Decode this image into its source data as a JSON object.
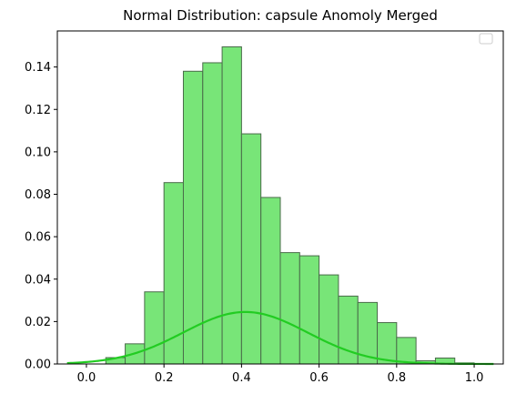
{
  "chart_data": {
    "type": "bar",
    "title": "Normal Distribution: capsule Anomoly Merged",
    "xlabel": "",
    "ylabel": "",
    "xlim": [
      -0.075,
      1.075
    ],
    "ylim": [
      0,
      0.157
    ],
    "x_ticks": [
      0.0,
      0.2,
      0.4,
      0.6,
      0.8,
      1.0
    ],
    "x_tick_labels": [
      "0.0",
      "0.2",
      "0.4",
      "0.6",
      "0.8",
      "1.0"
    ],
    "y_ticks": [
      0.0,
      0.02,
      0.04,
      0.06,
      0.08,
      0.1,
      0.12,
      0.14
    ],
    "y_tick_labels": [
      "0.00",
      "0.02",
      "0.04",
      "0.06",
      "0.08",
      "0.10",
      "0.12",
      "0.14"
    ],
    "grid": false,
    "legend": "top-right",
    "legend_entries": [],
    "histogram": {
      "bin_width": 0.05,
      "bins": [
        {
          "x0": 0.05,
          "value": 0.003
        },
        {
          "x0": 0.1,
          "value": 0.0095
        },
        {
          "x0": 0.15,
          "value": 0.034
        },
        {
          "x0": 0.2,
          "value": 0.0855
        },
        {
          "x0": 0.25,
          "value": 0.138
        },
        {
          "x0": 0.3,
          "value": 0.142
        },
        {
          "x0": 0.35,
          "value": 0.1495
        },
        {
          "x0": 0.4,
          "value": 0.1085
        },
        {
          "x0": 0.45,
          "value": 0.0785
        },
        {
          "x0": 0.5,
          "value": 0.0525
        },
        {
          "x0": 0.55,
          "value": 0.051
        },
        {
          "x0": 0.6,
          "value": 0.042
        },
        {
          "x0": 0.65,
          "value": 0.032
        },
        {
          "x0": 0.7,
          "value": 0.029
        },
        {
          "x0": 0.75,
          "value": 0.0195
        },
        {
          "x0": 0.8,
          "value": 0.0125
        },
        {
          "x0": 0.85,
          "value": 0.0015
        },
        {
          "x0": 0.9,
          "value": 0.0028
        },
        {
          "x0": 0.95,
          "value": 0.0005
        }
      ],
      "fill_color": "#78e578",
      "edge_color": "#4a6b4a"
    },
    "curve": {
      "type": "normal_pdf_scaled",
      "mean": 0.41,
      "sd": 0.16,
      "peak": 0.0245,
      "x_range": [
        -0.05,
        1.05
      ],
      "color": "#22cc22"
    }
  }
}
